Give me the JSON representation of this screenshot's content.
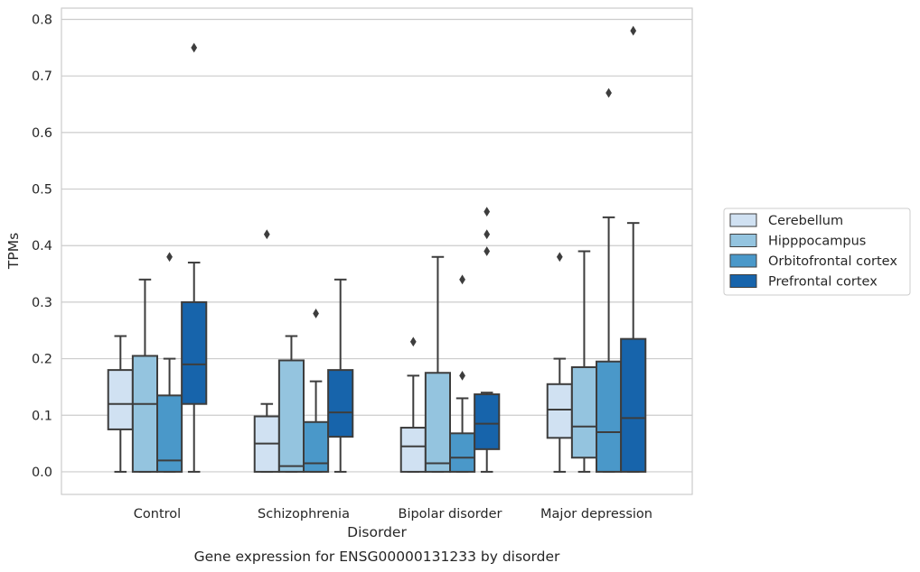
{
  "chart_data": {
    "type": "boxplot",
    "title": "Gene expression for ENSG00000131233 by disorder",
    "xlabel": "Disorder",
    "ylabel": "TPMs",
    "ylim": [
      -0.04,
      0.82
    ],
    "yticks": [
      0.0,
      0.1,
      0.2,
      0.3,
      0.4,
      0.5,
      0.6,
      0.7,
      0.8
    ],
    "ytick_labels": [
      "0.0",
      "0.1",
      "0.2",
      "0.3",
      "0.4",
      "0.5",
      "0.6",
      "0.7",
      "0.8"
    ],
    "grid": true,
    "legend_placement": "right",
    "categories": [
      "Control",
      "Schizophrenia",
      "Bipolar disorder",
      "Major depression"
    ],
    "series": [
      {
        "name": "Cerebellum",
        "color": "#d0e1f2",
        "boxes": [
          {
            "whislo": 0.0,
            "q1": 0.075,
            "med": 0.12,
            "q3": 0.18,
            "whishi": 0.24,
            "fliers": []
          },
          {
            "whislo": 0.0,
            "q1": 0.0,
            "med": 0.05,
            "q3": 0.098,
            "whishi": 0.12,
            "fliers": [
              0.42
            ]
          },
          {
            "whislo": 0.0,
            "q1": 0.0,
            "med": 0.045,
            "q3": 0.078,
            "whishi": 0.17,
            "fliers": [
              0.23
            ]
          },
          {
            "whislo": 0.0,
            "q1": 0.06,
            "med": 0.11,
            "q3": 0.155,
            "whishi": 0.2,
            "fliers": [
              0.38
            ]
          }
        ]
      },
      {
        "name": "Hipppocampus",
        "color": "#94c4df",
        "boxes": [
          {
            "whislo": 0.0,
            "q1": 0.0,
            "med": 0.12,
            "q3": 0.205,
            "whishi": 0.34,
            "fliers": []
          },
          {
            "whislo": 0.0,
            "q1": 0.0,
            "med": 0.01,
            "q3": 0.197,
            "whishi": 0.24,
            "fliers": []
          },
          {
            "whislo": 0.0,
            "q1": 0.0,
            "med": 0.015,
            "q3": 0.175,
            "whishi": 0.38,
            "fliers": []
          },
          {
            "whislo": 0.0,
            "q1": 0.025,
            "med": 0.08,
            "q3": 0.185,
            "whishi": 0.39,
            "fliers": []
          }
        ]
      },
      {
        "name": "Orbitofrontal cortex",
        "color": "#4a98c9",
        "boxes": [
          {
            "whislo": 0.0,
            "q1": 0.0,
            "med": 0.02,
            "q3": 0.135,
            "whishi": 0.2,
            "fliers": [
              0.38
            ]
          },
          {
            "whislo": 0.0,
            "q1": 0.0,
            "med": 0.015,
            "q3": 0.088,
            "whishi": 0.16,
            "fliers": [
              0.28
            ]
          },
          {
            "whislo": 0.0,
            "q1": 0.0,
            "med": 0.025,
            "q3": 0.068,
            "whishi": 0.13,
            "fliers": [
              0.17,
              0.34
            ]
          },
          {
            "whislo": 0.0,
            "q1": 0.0,
            "med": 0.07,
            "q3": 0.195,
            "whishi": 0.45,
            "fliers": [
              0.67
            ]
          }
        ]
      },
      {
        "name": "Prefrontal cortex",
        "color": "#1764ab",
        "boxes": [
          {
            "whislo": 0.0,
            "q1": 0.12,
            "med": 0.19,
            "q3": 0.3,
            "whishi": 0.37,
            "fliers": [
              0.75
            ]
          },
          {
            "whislo": 0.0,
            "q1": 0.062,
            "med": 0.105,
            "q3": 0.18,
            "whishi": 0.34,
            "fliers": []
          },
          {
            "whislo": 0.0,
            "q1": 0.04,
            "med": 0.085,
            "q3": 0.137,
            "whishi": 0.14,
            "fliers": [
              0.39,
              0.42,
              0.46
            ]
          },
          {
            "whislo": 0.0,
            "q1": 0.0,
            "med": 0.095,
            "q3": 0.235,
            "whishi": 0.44,
            "fliers": [
              0.78
            ]
          }
        ]
      }
    ]
  }
}
